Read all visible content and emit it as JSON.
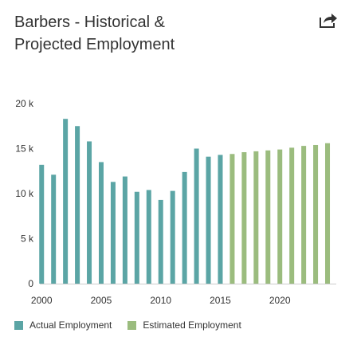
{
  "header": {
    "title_line1": "Barbers - Historical &",
    "title_line2": "Projected Employment",
    "share_icon": "share-arrow-icon"
  },
  "colors": {
    "actual": "#5ba5a5",
    "estimated": "#9bbc7e",
    "axis_text": "#333333",
    "grid": "#e6e6e6"
  },
  "chart_data": {
    "type": "bar",
    "title": "Barbers - Historical & Projected Employment",
    "xlabel": "",
    "ylabel": "",
    "ylim": [
      0,
      20000
    ],
    "y_ticks": [
      0,
      5000,
      10000,
      15000,
      20000
    ],
    "y_tick_labels": [
      "0",
      "5 k",
      "10 k",
      "15 k",
      "20 k"
    ],
    "x_ticks": [
      2000,
      2005,
      2010,
      2015,
      2020
    ],
    "x_tick_labels": [
      "2000",
      "2005",
      "2010",
      "2015",
      "2020"
    ],
    "grid": false,
    "legend_position": "bottom-left",
    "series": [
      {
        "name": "Actual Employment",
        "x": [
          2000,
          2001,
          2002,
          2003,
          2004,
          2005,
          2006,
          2007,
          2008,
          2009,
          2010,
          2011,
          2012,
          2013,
          2014,
          2015
        ],
        "values": [
          13200,
          12100,
          18300,
          17500,
          15800,
          13500,
          11300,
          11900,
          10200,
          10400,
          9300,
          10300,
          12400,
          15000,
          14100,
          14300
        ]
      },
      {
        "name": "Estimated Employment",
        "x": [
          2016,
          2017,
          2018,
          2019,
          2020,
          2021,
          2022,
          2023,
          2024
        ],
        "values": [
          14400,
          14600,
          14700,
          14800,
          14900,
          15100,
          15300,
          15400,
          15600
        ]
      }
    ]
  }
}
